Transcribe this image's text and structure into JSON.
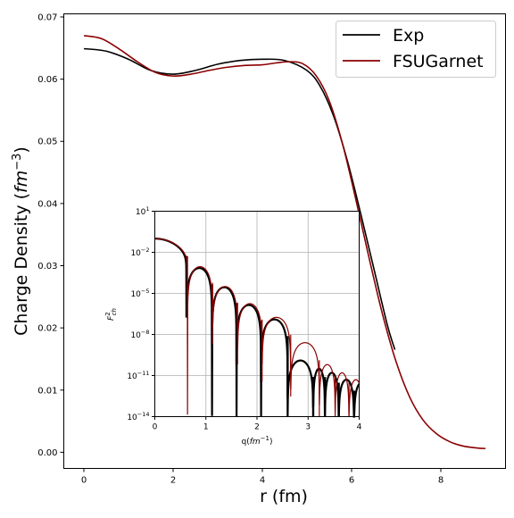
{
  "chart_data": [
    {
      "id": "main",
      "type": "line",
      "xlabel": "r (fm)",
      "ylabel": "Charge Density (",
      "ylabel_unit": "fm",
      "ylabel_exp": "−3",
      "ylabel_close": ")",
      "xlim": [
        -0.45,
        9.45
      ],
      "ylim": [
        -0.0026,
        0.0705
      ],
      "x_ticks": [
        0,
        2,
        4,
        6,
        8
      ],
      "x_tick_labels": [
        "0",
        "2",
        "4",
        "6",
        "8"
      ],
      "y_ticks": [
        0.0,
        0.01,
        0.02,
        0.03,
        0.04,
        0.05,
        0.06,
        0.07
      ],
      "y_tick_labels": [
        "0.00",
        "0.01",
        "0.02",
        "0.03",
        "0.04",
        "0.05",
        "0.06",
        "0.07"
      ],
      "grid": false,
      "legend_position": "top-right",
      "series": [
        {
          "name": "Exp",
          "color": "#000000",
          "x": [
            0,
            0.5,
            1.0,
            1.5,
            2.0,
            2.5,
            3.0,
            3.5,
            4.0,
            4.5,
            5.0,
            5.3,
            5.6,
            5.9,
            6.2,
            6.5,
            6.8,
            6.97
          ],
          "y": [
            0.0649,
            0.0645,
            0.0632,
            0.0614,
            0.0608,
            0.0614,
            0.0624,
            0.063,
            0.0632,
            0.063,
            0.0614,
            0.0588,
            0.054,
            0.047,
            0.0385,
            0.0295,
            0.0205,
            0.0165
          ]
        },
        {
          "name": "FSUGarnet",
          "color": "#8b0000",
          "x": [
            0,
            0.4,
            0.8,
            1.2,
            1.6,
            2.0,
            2.4,
            2.8,
            3.2,
            3.6,
            4.0,
            4.3,
            4.6,
            4.9,
            5.2,
            5.5,
            5.8,
            6.1,
            6.4,
            6.7,
            7.0,
            7.3,
            7.6,
            7.9,
            8.2,
            8.5,
            8.8,
            9.0
          ],
          "y": [
            0.067,
            0.0665,
            0.0648,
            0.0628,
            0.0611,
            0.0605,
            0.0608,
            0.0614,
            0.0619,
            0.0622,
            0.0623,
            0.0626,
            0.0628,
            0.0625,
            0.0606,
            0.0565,
            0.0495,
            0.0405,
            0.031,
            0.022,
            0.0145,
            0.0089,
            0.0052,
            0.003,
            0.0017,
            0.001,
            0.0007,
            0.0006
          ]
        }
      ]
    },
    {
      "id": "inset",
      "type": "line",
      "xlabel": "q(",
      "xlabel_unit": "fm",
      "xlabel_exp": "−1",
      "xlabel_close": ")",
      "ylabel_base": "F",
      "ylabel_sup": "2",
      "ylabel_sub": "ch",
      "xlim": [
        0,
        4
      ],
      "y_log_lim": [
        -14,
        1
      ],
      "x_ticks": [
        0,
        1,
        2,
        3,
        4
      ],
      "x_tick_labels": [
        "0",
        "1",
        "2",
        "3",
        "4"
      ],
      "y_ticks_exp": [
        1,
        -2,
        -5,
        -8,
        -11,
        -14
      ],
      "y_tick_base": "10",
      "y_tick_exps": [
        "1",
        "−2",
        "−5",
        "−8",
        "−11",
        "−14"
      ],
      "grid": true,
      "scale_y": "log",
      "series": [
        {
          "name": "Exp",
          "color": "#000000",
          "zeros": [
            0.62,
            1.12,
            1.6,
            2.08,
            2.6,
            3.1,
            3.33,
            3.6,
            3.9
          ],
          "peak_exps": [
            -1.0,
            -3.15,
            -4.55,
            -5.85,
            -6.9,
            -9.9,
            -10.5,
            -10.8,
            -11.3,
            -11.5
          ],
          "notch_depth": 12.5
        },
        {
          "name": "FSUGarnet",
          "color": "#8b0000",
          "zeros": [
            0.64,
            1.13,
            1.62,
            2.1,
            2.66,
            3.22,
            3.53,
            3.8
          ],
          "peak_exps": [
            -1.0,
            -3.05,
            -4.5,
            -5.75,
            -6.75,
            -8.6,
            -10.2,
            -10.8,
            -11.3
          ],
          "notch_depth": 12.5
        }
      ]
    }
  ]
}
